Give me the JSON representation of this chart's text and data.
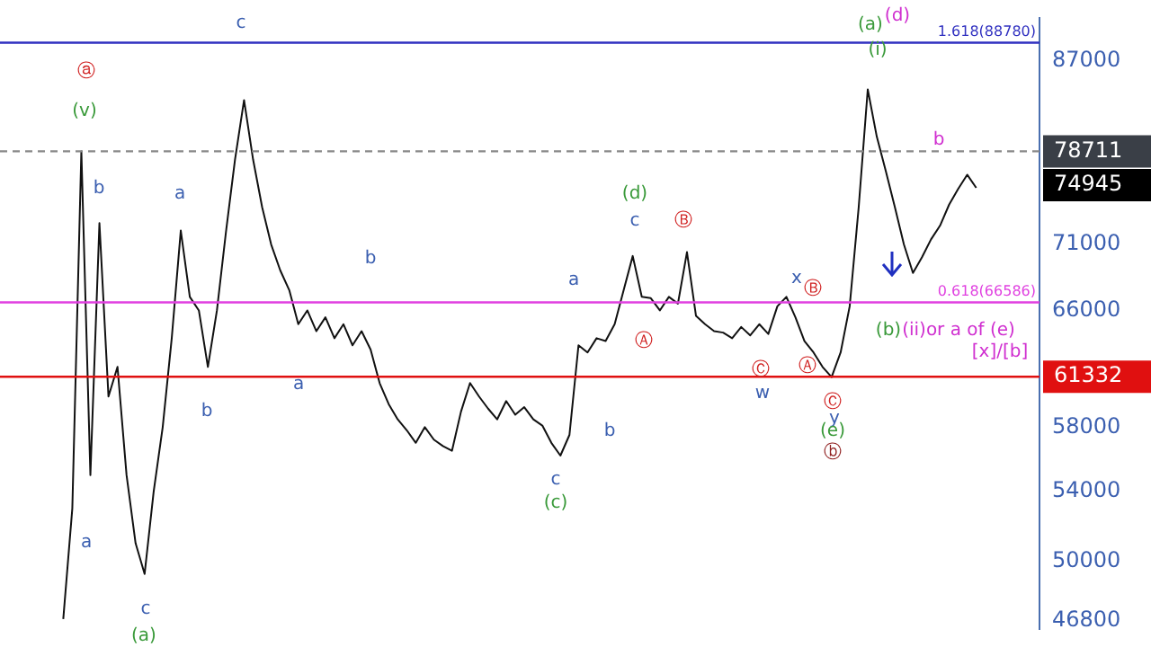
{
  "chart_data": {
    "type": "line",
    "log": true,
    "grid": false,
    "legend": false,
    "marker": "none",
    "tick_labels": "y",
    "categories": [
      null,
      null,
      null,
      null,
      null,
      null,
      null,
      null,
      null,
      null,
      null,
      null,
      null,
      null,
      null,
      null,
      null,
      null,
      null,
      null,
      null,
      null,
      null,
      null,
      null,
      null,
      null,
      null,
      null,
      null,
      null,
      null,
      null,
      null,
      null,
      null,
      null,
      null,
      null,
      null,
      null,
      null,
      null,
      null,
      null,
      null,
      null,
      null,
      null,
      null,
      null,
      null,
      null,
      null,
      null,
      null,
      null,
      null,
      null,
      null,
      null,
      null,
      null,
      null,
      null,
      null,
      null,
      null,
      null,
      null,
      null,
      null,
      null,
      null,
      null,
      null,
      null,
      null,
      null,
      null,
      null,
      null,
      null,
      null,
      null,
      null,
      null,
      null,
      null,
      null,
      null,
      null,
      null,
      null,
      null,
      null,
      null,
      null,
      null,
      null,
      null,
      null,
      null,
      null,
      null,
      null,
      null,
      null,
      null,
      null,
      null,
      null,
      null,
      null,
      null,
      null
    ],
    "series": [
      {
        "color": "#111111",
        "values": [
          null,
          null,
          null,
          null,
          null,
          null,
          null,
          46900,
          53000,
          78700,
          55000,
          72700,
          60000,
          62000,
          55000,
          51000,
          49300,
          54000,
          58000,
          64000,
          72100,
          67000,
          66000,
          62000,
          66000,
          72000,
          78000,
          83300,
          78000,
          74000,
          71000,
          69000,
          67500,
          65000,
          66000,
          64500,
          65500,
          64000,
          65000,
          63500,
          64500,
          63200,
          60900,
          59500,
          58500,
          57800,
          57000,
          58000,
          57200,
          56800,
          56500,
          59000,
          60900,
          60000,
          59200,
          58500,
          59700,
          58800,
          59300,
          58500,
          58100,
          57000,
          56200,
          57500,
          63500,
          63000,
          64000,
          63800,
          65000,
          67500,
          70100,
          67000,
          66900,
          66000,
          67000,
          66500,
          70400,
          65600,
          65000,
          64500,
          64400,
          64000,
          64800,
          64200,
          65000,
          64300,
          66300,
          67000,
          65500,
          63800,
          63000,
          62000,
          61300,
          63000,
          66300,
          74000,
          84300,
          80000,
          77000,
          74000,
          71000,
          68800,
          70000,
          71400,
          72500,
          74200,
          75500,
          76700,
          75600,
          null,
          null,
          null,
          null,
          null,
          null,
          null
        ]
      }
    ],
    "ylim": [
      46400,
      91200
    ],
    "yticks": [
      46800,
      50000,
      54000,
      58000,
      66000,
      71000,
      87000
    ],
    "ref_lines": [
      {
        "axis": "y",
        "value": 61332,
        "label": "61332",
        "color": "#e01010",
        "line_style": "solid"
      },
      {
        "axis": "y",
        "value": 78711,
        "label": "78711",
        "color": "#888888",
        "line_style": "dashed"
      },
      {
        "axis": "y",
        "value": 66586,
        "label": "0.618(66586)",
        "color": "#e040e0",
        "line_style": "solid"
      },
      {
        "axis": "y",
        "value": 88780,
        "label": "1.618(88780)",
        "color": "#3030c0",
        "line_style": "solid"
      }
    ],
    "annotations": [
      "74945",
      "ⓐ",
      "(v)",
      "b",
      "a",
      "c",
      "b",
      "a",
      "b",
      "a",
      "c",
      "(a)",
      "c",
      "(c)",
      "b",
      "a",
      "(d)",
      "c",
      "Ⓑ",
      "Ⓐ",
      "Ⓒ",
      "Ⓐ",
      "w",
      "x",
      "Ⓑ",
      "Ⓒ",
      "y",
      "(e)",
      "ⓑ",
      "(a)",
      "(d)",
      "(i)",
      "b",
      "(b)",
      "(ii)or a of (e)",
      "[x]/[b]"
    ]
  }
}
